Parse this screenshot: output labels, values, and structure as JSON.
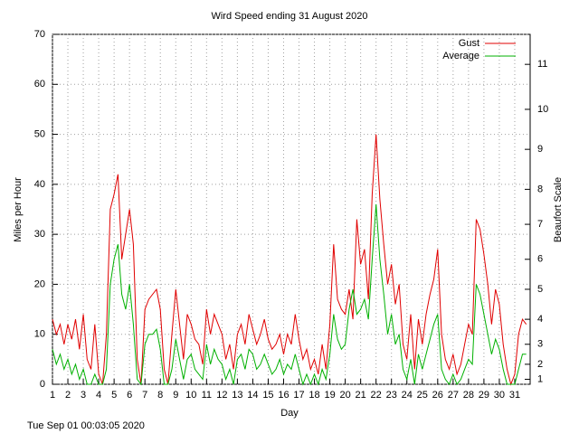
{
  "chart_data": {
    "type": "line",
    "title": "Wird Speed ending 31 August 2020",
    "x_label": "Day",
    "y_label": "Miles per Hour",
    "y2_label": "Beaufort Scale",
    "footer": "Tue Sep 01 00:03:05 2020",
    "x": [
      1,
      1.25,
      1.5,
      1.75,
      2,
      2.25,
      2.5,
      2.75,
      3,
      3.25,
      3.5,
      3.75,
      4,
      4.25,
      4.5,
      4.75,
      5,
      5.25,
      5.5,
      5.75,
      6,
      6.25,
      6.5,
      6.75,
      7,
      7.25,
      7.5,
      7.75,
      8,
      8.25,
      8.5,
      8.75,
      9,
      9.25,
      9.5,
      9.75,
      10,
      10.25,
      10.5,
      10.75,
      11,
      11.25,
      11.5,
      11.75,
      12,
      12.25,
      12.5,
      12.75,
      13,
      13.25,
      13.5,
      13.75,
      14,
      14.25,
      14.5,
      14.75,
      15,
      15.25,
      15.5,
      15.75,
      16,
      16.25,
      16.5,
      16.75,
      17,
      17.25,
      17.5,
      17.75,
      18,
      18.25,
      18.5,
      18.75,
      19,
      19.25,
      19.5,
      19.75,
      20,
      20.25,
      20.5,
      20.75,
      21,
      21.25,
      21.5,
      21.75,
      22,
      22.25,
      22.5,
      22.75,
      23,
      23.25,
      23.5,
      23.75,
      24,
      24.25,
      24.5,
      24.75,
      25,
      25.25,
      25.5,
      25.75,
      26,
      26.25,
      26.5,
      26.75,
      27,
      27.25,
      27.5,
      27.75,
      28,
      28.25,
      28.5,
      28.75,
      29,
      29.25,
      29.5,
      29.75,
      30,
      30.25,
      30.5,
      30.75,
      31,
      31.25,
      31.5,
      31.75
    ],
    "series": [
      {
        "name": "Gust",
        "color": "#e00000",
        "values": [
          13,
          10,
          12,
          8,
          12,
          9,
          13,
          7,
          14,
          5,
          3,
          12,
          2,
          0,
          10,
          35,
          38,
          42,
          25,
          30,
          35,
          28,
          5,
          0,
          15,
          17,
          18,
          19,
          15,
          3,
          0,
          10,
          19,
          12,
          5,
          14,
          12,
          9,
          8,
          4,
          15,
          10,
          14,
          12,
          10,
          5,
          8,
          3,
          10,
          12,
          8,
          14,
          11,
          8,
          10,
          13,
          9,
          7,
          8,
          10,
          6,
          10,
          8,
          14,
          9,
          5,
          7,
          3,
          5,
          2,
          8,
          3,
          12,
          28,
          17,
          15,
          14,
          19,
          13,
          33,
          24,
          27,
          17,
          38,
          50,
          37,
          28,
          20,
          24,
          16,
          20,
          8,
          5,
          14,
          3,
          13,
          8,
          14,
          18,
          21,
          27,
          10,
          5,
          3,
          6,
          2,
          4,
          8,
          12,
          10,
          33,
          31,
          26,
          20,
          12,
          19,
          16,
          8,
          3,
          0,
          2,
          10,
          13,
          12
        ]
      },
      {
        "name": "Average",
        "color": "#00b000",
        "values": [
          7,
          4,
          6,
          3,
          5,
          2,
          4,
          1,
          3,
          0,
          0,
          2,
          0,
          0,
          3,
          20,
          25,
          28,
          18,
          15,
          20,
          12,
          1,
          0,
          8,
          10,
          10,
          11,
          7,
          0,
          0,
          3,
          9,
          5,
          1,
          5,
          6,
          3,
          2,
          1,
          8,
          4,
          7,
          5,
          4,
          1,
          3,
          0,
          5,
          6,
          3,
          7,
          6,
          3,
          4,
          6,
          4,
          2,
          3,
          5,
          2,
          4,
          3,
          6,
          3,
          0,
          2,
          0,
          2,
          0,
          3,
          1,
          6,
          14,
          9,
          7,
          8,
          15,
          19,
          14,
          15,
          17,
          13,
          25,
          36,
          25,
          18,
          10,
          14,
          8,
          10,
          3,
          1,
          5,
          0,
          6,
          3,
          6,
          9,
          12,
          14,
          3,
          1,
          0,
          2,
          0,
          1,
          3,
          5,
          4,
          20,
          18,
          14,
          10,
          6,
          9,
          7,
          3,
          0,
          0,
          0,
          3,
          6,
          6
        ]
      }
    ],
    "xlim": [
      1,
      32
    ],
    "xticks": [
      1,
      2,
      3,
      4,
      5,
      6,
      7,
      8,
      9,
      10,
      11,
      12,
      13,
      14,
      15,
      16,
      17,
      18,
      19,
      20,
      21,
      22,
      23,
      24,
      25,
      26,
      27,
      28,
      29,
      30,
      31
    ],
    "ylim": [
      0,
      70
    ],
    "yticks": [
      0,
      10,
      20,
      30,
      40,
      50,
      60,
      70
    ],
    "y2lim": [
      0,
      70
    ],
    "y2ticks": [
      1,
      {
        "value": 4,
        "label": "2"
      },
      {
        "value": 8,
        "label": "3"
      },
      {
        "value": 13,
        "label": "4"
      },
      {
        "value": 19,
        "label": "5"
      },
      {
        "value": 25,
        "label": "6"
      },
      {
        "value": 32,
        "label": "7"
      },
      {
        "value": 39,
        "label": "8"
      },
      {
        "value": 47,
        "label": "9"
      },
      {
        "value": 55,
        "label": "10"
      },
      {
        "value": 64,
        "label": "11"
      }
    ],
    "grid": true,
    "legend": "top-right"
  }
}
